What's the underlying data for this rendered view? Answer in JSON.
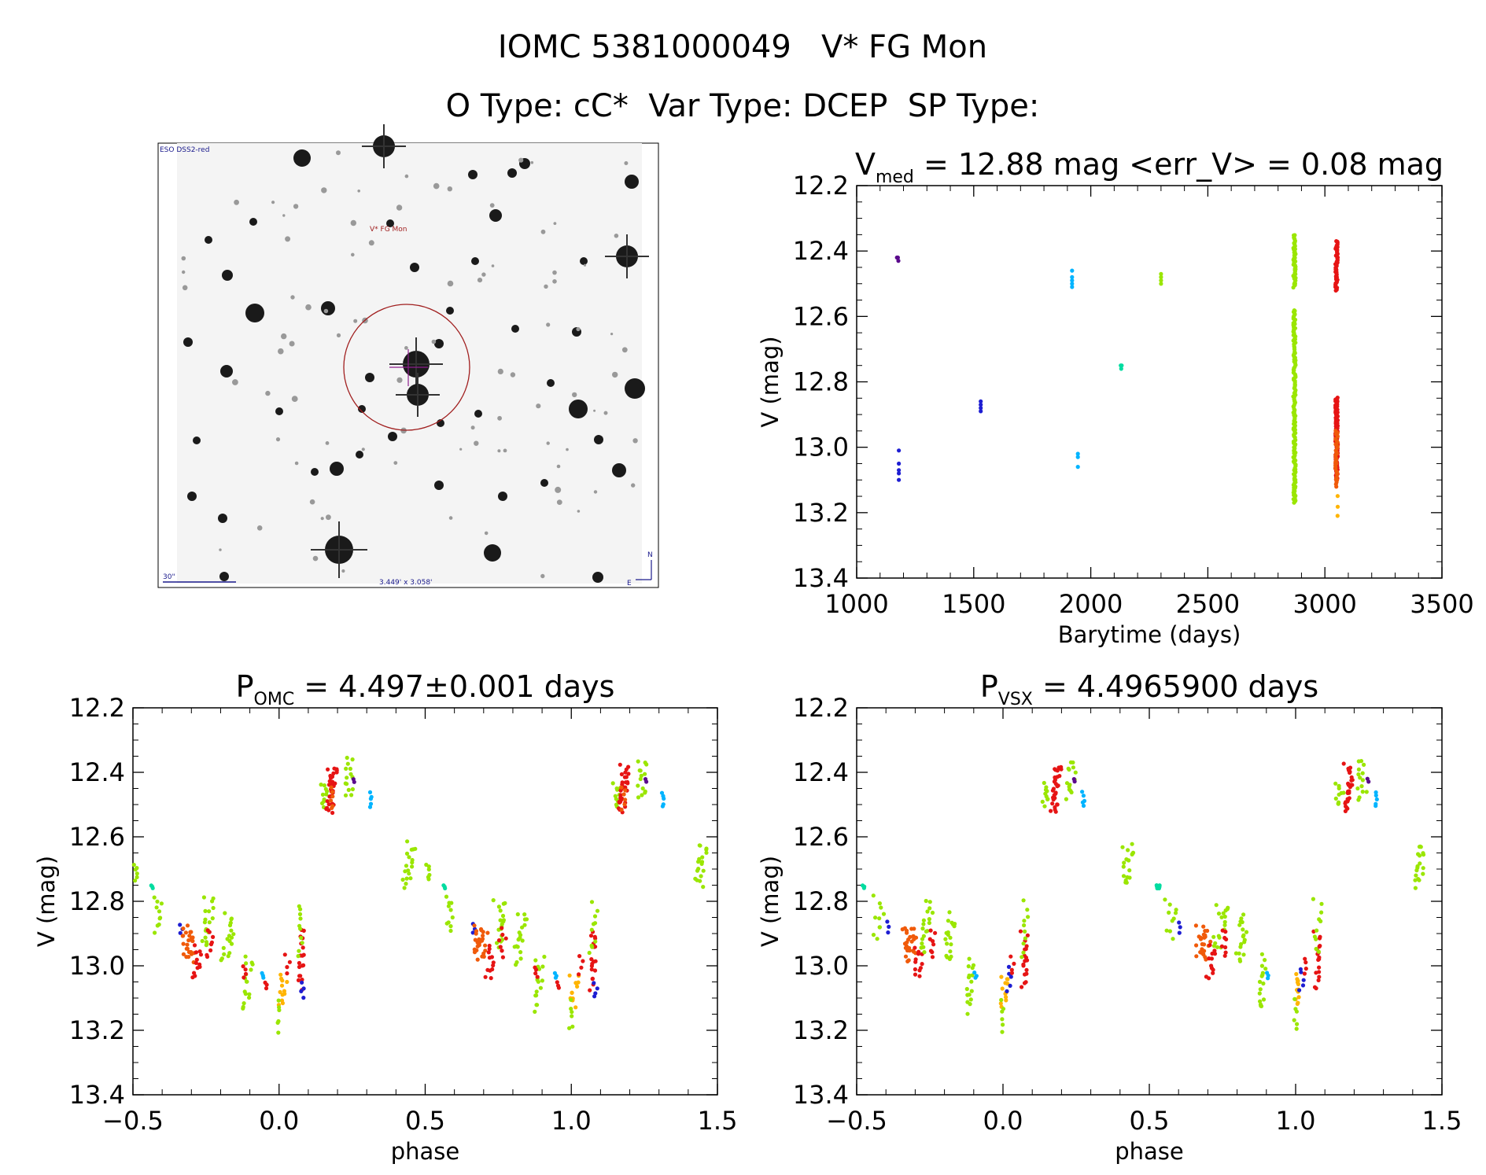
{
  "header": {
    "line1": "IOMC 5381000049   V* FG Mon",
    "line2": "O Type: cC*  Var Type: DCEP  SP Type:"
  },
  "finder": {
    "survey_label": "ESO DSS2-red",
    "target_label": "V* FG Mon",
    "scale_label": "30\"",
    "fov_label": "3.449' x 3.058'",
    "north_label": "N",
    "east_label": "E"
  },
  "colors": {
    "violet": "#5a0a8c",
    "blue": "#1e1ed2",
    "cyan": "#00b4ff",
    "teal": "#00dca0",
    "lime": "#9ae600",
    "gold": "#ffb400",
    "orange": "#f05a0a",
    "red": "#e61414",
    "circle": "#a01e1e",
    "cross": "#8c1e8c"
  },
  "chart_data": [
    {
      "type": "scatter",
      "id": "lightcurve",
      "title_prefix": "V",
      "title_sub": "med",
      "title_rest": " = 12.88 mag <err_V> = 0.08 mag",
      "xlabel": "Barytime (days)",
      "ylabel": "V (mag)",
      "xlim": [
        1000,
        3500
      ],
      "ylim": [
        13.4,
        12.2
      ],
      "xticks": [
        1000,
        1500,
        2000,
        2500,
        3000,
        3500
      ],
      "yticks": [
        12.2,
        12.4,
        12.6,
        12.8,
        13.0,
        13.2,
        13.4
      ],
      "series": [
        {
          "name": "1175",
          "color": "violet",
          "x": [
            1172,
            1174,
            1176,
            1178
          ],
          "y": [
            12.42,
            12.42,
            12.42,
            12.43
          ]
        },
        {
          "name": "1180",
          "color": "blue",
          "x": [
            1180,
            1180,
            1180,
            1180,
            1180
          ],
          "y": [
            13.01,
            13.05,
            13.07,
            13.08,
            13.1
          ]
        },
        {
          "name": "1530",
          "color": "blue",
          "x": [
            1530,
            1530,
            1530,
            1530
          ],
          "y": [
            12.86,
            12.87,
            12.88,
            12.89
          ]
        },
        {
          "name": "1920",
          "color": "cyan",
          "x": [
            1920,
            1920,
            1920,
            1920,
            1920
          ],
          "y": [
            12.46,
            12.48,
            12.49,
            12.5,
            12.51
          ]
        },
        {
          "name": "1945",
          "color": "cyan",
          "x": [
            1945,
            1945,
            1945
          ],
          "y": [
            13.02,
            13.03,
            13.06
          ]
        },
        {
          "name": "2130",
          "color": "teal",
          "x": [
            2128,
            2130,
            2132
          ],
          "y": [
            12.75,
            12.76,
            12.75
          ]
        },
        {
          "name": "2300",
          "color": "lime",
          "x": [
            2300,
            2300,
            2300,
            2300
          ],
          "y": [
            12.47,
            12.48,
            12.49,
            12.5
          ]
        }
      ],
      "dense": [
        {
          "name": "2870-upper",
          "color": "lime",
          "x": 2870,
          "ymin": 12.35,
          "ymax": 12.51,
          "n": 42
        },
        {
          "name": "2870-lower",
          "color": "lime",
          "x": 2870,
          "ymin": 12.58,
          "ymax": 13.17,
          "n": 150
        },
        {
          "name": "3050-upper",
          "color": "red",
          "x": 3050,
          "ymin": 12.37,
          "ymax": 12.52,
          "n": 50
        },
        {
          "name": "3050-lower",
          "color": "red",
          "x": 3050,
          "ymin": 12.85,
          "ymax": 13.1,
          "n": 130
        },
        {
          "name": "3050-low-orange",
          "color": "orange",
          "x": 3050,
          "ymin": 12.95,
          "ymax": 13.12,
          "n": 30
        },
        {
          "name": "3050-gold",
          "color": "gold",
          "x": 3050,
          "ymin": 13.15,
          "ymax": 13.21,
          "n": 3
        }
      ]
    },
    {
      "type": "scatter",
      "id": "phase-omc",
      "title_prefix": "P",
      "title_sub": "OMC",
      "title_rest": " = 4.497±0.001 days",
      "xlabel": "phase",
      "ylabel": "V (mag)",
      "xlim": [
        -0.5,
        1.5
      ],
      "ylim": [
        13.4,
        12.2
      ],
      "xticks": [
        -0.5,
        0.0,
        0.5,
        1.0,
        1.5
      ],
      "yticks": [
        12.2,
        12.4,
        12.6,
        12.8,
        13.0,
        13.2,
        13.4
      ],
      "groups": [
        {
          "name": "lime-a",
          "color": "lime",
          "phase": [
            -0.5,
            -0.48
          ],
          "v": [
            12.68,
            12.74
          ],
          "n": 6
        },
        {
          "name": "teal-a",
          "color": "teal",
          "phase": [
            -0.44,
            -0.43
          ],
          "v": [
            12.75,
            12.76
          ],
          "n": 3
        },
        {
          "name": "lime-b",
          "color": "lime",
          "phase": [
            -0.43,
            -0.4
          ],
          "v": [
            12.78,
            12.9
          ],
          "n": 10
        },
        {
          "name": "blue-a",
          "color": "blue",
          "phase": [
            -0.34,
            -0.33
          ],
          "v": [
            12.87,
            12.9
          ],
          "n": 3
        },
        {
          "name": "orange-a",
          "color": "orange",
          "phase": [
            -0.34,
            -0.28
          ],
          "v": [
            12.87,
            12.99
          ],
          "n": 26
        },
        {
          "name": "red-a",
          "color": "red",
          "phase": [
            -0.3,
            -0.26
          ],
          "v": [
            12.93,
            13.05
          ],
          "n": 12
        },
        {
          "name": "lime-c",
          "color": "lime",
          "phase": [
            -0.27,
            -0.22
          ],
          "v": [
            12.78,
            12.96
          ],
          "n": 18
        },
        {
          "name": "red-b",
          "color": "red",
          "phase": [
            -0.26,
            -0.22
          ],
          "v": [
            12.88,
            12.98
          ],
          "n": 8
        },
        {
          "name": "lime-d",
          "color": "lime",
          "phase": [
            -0.2,
            -0.15
          ],
          "v": [
            12.83,
            13.0
          ],
          "n": 18
        },
        {
          "name": "lime-e",
          "color": "lime",
          "phase": [
            -0.13,
            -0.09
          ],
          "v": [
            12.96,
            13.15
          ],
          "n": 16
        },
        {
          "name": "red-c",
          "color": "red",
          "phase": [
            -0.13,
            -0.11
          ],
          "v": [
            13.0,
            13.04
          ],
          "n": 4
        },
        {
          "name": "cyan-a",
          "color": "cyan",
          "phase": [
            -0.06,
            -0.05
          ],
          "v": [
            13.02,
            13.04
          ],
          "n": 3
        },
        {
          "name": "red-d",
          "color": "red",
          "phase": [
            -0.05,
            -0.04
          ],
          "v": [
            13.05,
            13.07
          ],
          "n": 3
        },
        {
          "name": "gold-a",
          "color": "gold",
          "phase": [
            -0.01,
            0.03
          ],
          "v": [
            13.02,
            13.13
          ],
          "n": 12
        },
        {
          "name": "lime-f",
          "color": "lime",
          "phase": [
            -0.01,
            0.01
          ],
          "v": [
            13.1,
            13.21
          ],
          "n": 6
        },
        {
          "name": "red-e",
          "color": "red",
          "phase": [
            0.02,
            0.04
          ],
          "v": [
            12.96,
            13.03
          ],
          "n": 4
        },
        {
          "name": "red-f",
          "color": "red",
          "phase": [
            0.06,
            0.09
          ],
          "v": [
            12.88,
            13.08
          ],
          "n": 18
        },
        {
          "name": "lime-g",
          "color": "lime",
          "phase": [
            0.06,
            0.09
          ],
          "v": [
            12.79,
            12.98
          ],
          "n": 10
        },
        {
          "name": "blue-b",
          "color": "blue",
          "phase": [
            0.07,
            0.09
          ],
          "v": [
            13.05,
            13.1
          ],
          "n": 4
        },
        {
          "name": "lime-h",
          "color": "lime",
          "phase": [
            0.14,
            0.17
          ],
          "v": [
            12.43,
            12.51
          ],
          "n": 10
        },
        {
          "name": "red-g",
          "color": "red",
          "phase": [
            0.16,
            0.2
          ],
          "v": [
            12.37,
            12.53
          ],
          "n": 30
        },
        {
          "name": "orange-b",
          "color": "orange",
          "phase": [
            0.17,
            0.19
          ],
          "v": [
            12.44,
            12.52
          ],
          "n": 6
        },
        {
          "name": "lime-i",
          "color": "lime",
          "phase": [
            0.22,
            0.26
          ],
          "v": [
            12.35,
            12.49
          ],
          "n": 14
        },
        {
          "name": "violet-a",
          "color": "violet",
          "phase": [
            0.25,
            0.26
          ],
          "v": [
            12.42,
            12.43
          ],
          "n": 2
        },
        {
          "name": "cyan-b",
          "color": "cyan",
          "phase": [
            0.31,
            0.32
          ],
          "v": [
            12.46,
            12.51
          ],
          "n": 5
        },
        {
          "name": "lime-j",
          "color": "lime",
          "phase": [
            0.42,
            0.47
          ],
          "v": [
            12.61,
            12.76
          ],
          "n": 18
        }
      ]
    },
    {
      "type": "scatter",
      "id": "phase-vsx",
      "title_prefix": "P",
      "title_sub": "VSX",
      "title_rest": " = 4.4965900 days",
      "xlabel": "phase",
      "ylabel": "V (mag)",
      "xlim": [
        -0.5,
        1.5
      ],
      "ylim": [
        13.4,
        12.2
      ],
      "xticks": [
        -0.5,
        0.0,
        0.5,
        1.0,
        1.5
      ],
      "yticks": [
        12.2,
        12.4,
        12.6,
        12.8,
        13.0,
        13.2,
        13.4
      ],
      "groups": [
        {
          "name": "teal-a",
          "color": "teal",
          "phase": [
            -0.48,
            -0.47
          ],
          "v": [
            12.75,
            12.76
          ],
          "n": 3
        },
        {
          "name": "lime-b",
          "color": "lime",
          "phase": [
            -0.45,
            -0.4
          ],
          "v": [
            12.78,
            12.92
          ],
          "n": 10
        },
        {
          "name": "blue-a",
          "color": "blue",
          "phase": [
            -0.4,
            -0.39
          ],
          "v": [
            12.86,
            12.9
          ],
          "n": 3
        },
        {
          "name": "orange-a",
          "color": "orange",
          "phase": [
            -0.35,
            -0.29
          ],
          "v": [
            12.87,
            12.99
          ],
          "n": 26
        },
        {
          "name": "red-a",
          "color": "red",
          "phase": [
            -0.31,
            -0.27
          ],
          "v": [
            12.93,
            13.05
          ],
          "n": 12
        },
        {
          "name": "lime-c",
          "color": "lime",
          "phase": [
            -0.29,
            -0.23
          ],
          "v": [
            12.79,
            12.96
          ],
          "n": 18
        },
        {
          "name": "red-b",
          "color": "red",
          "phase": [
            -0.26,
            -0.23
          ],
          "v": [
            12.88,
            12.98
          ],
          "n": 8
        },
        {
          "name": "lime-d",
          "color": "lime",
          "phase": [
            -0.21,
            -0.16
          ],
          "v": [
            12.83,
            13.0
          ],
          "n": 18
        },
        {
          "name": "lime-e",
          "color": "lime",
          "phase": [
            -0.13,
            -0.1
          ],
          "v": [
            12.96,
            13.15
          ],
          "n": 16
        },
        {
          "name": "cyan-a",
          "color": "cyan",
          "phase": [
            -0.1,
            -0.09
          ],
          "v": [
            13.02,
            13.04
          ],
          "n": 3
        },
        {
          "name": "gold-a",
          "color": "gold",
          "phase": [
            -0.01,
            0.02
          ],
          "v": [
            13.02,
            13.13
          ],
          "n": 12
        },
        {
          "name": "lime-f",
          "color": "lime",
          "phase": [
            -0.01,
            0.01
          ],
          "v": [
            13.1,
            13.21
          ],
          "n": 6
        },
        {
          "name": "blue-b",
          "color": "blue",
          "phase": [
            0.01,
            0.03
          ],
          "v": [
            13.0,
            13.08
          ],
          "n": 5
        },
        {
          "name": "red-e",
          "color": "red",
          "phase": [
            0.02,
            0.04
          ],
          "v": [
            12.97,
            13.03
          ],
          "n": 4
        },
        {
          "name": "red-f",
          "color": "red",
          "phase": [
            0.06,
            0.09
          ],
          "v": [
            12.88,
            13.08
          ],
          "n": 18
        },
        {
          "name": "lime-g",
          "color": "lime",
          "phase": [
            0.06,
            0.09
          ],
          "v": [
            12.79,
            12.98
          ],
          "n": 10
        },
        {
          "name": "lime-h",
          "color": "lime",
          "phase": [
            0.13,
            0.17
          ],
          "v": [
            12.43,
            12.51
          ],
          "n": 10
        },
        {
          "name": "red-g",
          "color": "red",
          "phase": [
            0.16,
            0.2
          ],
          "v": [
            12.37,
            12.53
          ],
          "n": 30
        },
        {
          "name": "lime-i",
          "color": "lime",
          "phase": [
            0.21,
            0.25
          ],
          "v": [
            12.35,
            12.49
          ],
          "n": 14
        },
        {
          "name": "violet-a",
          "color": "violet",
          "phase": [
            0.24,
            0.25
          ],
          "v": [
            12.42,
            12.43
          ],
          "n": 2
        },
        {
          "name": "cyan-b",
          "color": "cyan",
          "phase": [
            0.27,
            0.28
          ],
          "v": [
            12.46,
            12.51
          ],
          "n": 5
        },
        {
          "name": "lime-j",
          "color": "lime",
          "phase": [
            0.4,
            0.45
          ],
          "v": [
            12.61,
            12.76
          ],
          "n": 18
        },
        {
          "name": "teal-b",
          "color": "teal",
          "phase": [
            0.53,
            0.54
          ],
          "v": [
            12.75,
            12.76
          ],
          "n": 3
        }
      ]
    }
  ]
}
